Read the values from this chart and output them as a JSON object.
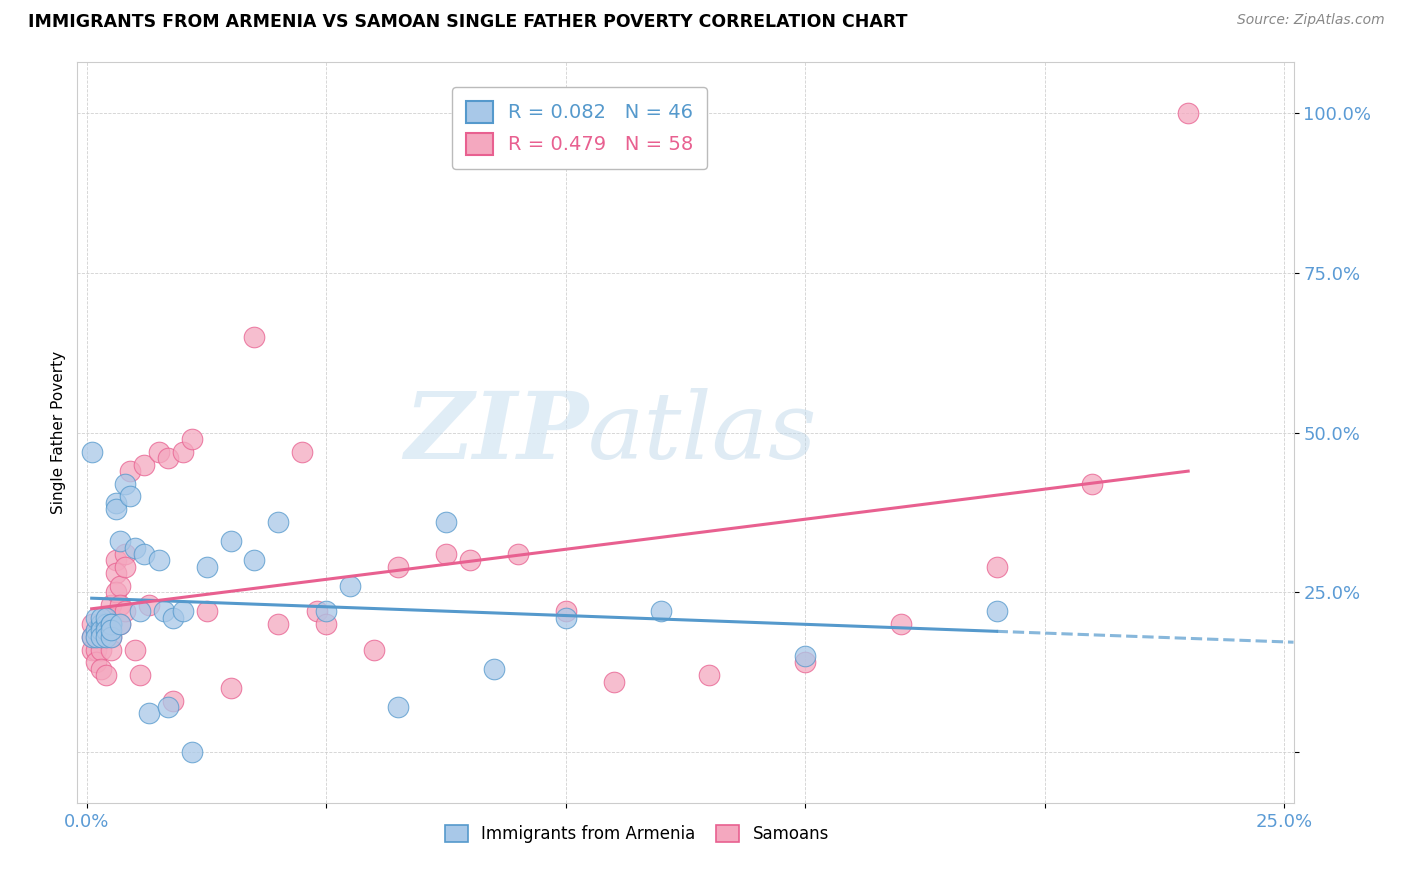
{
  "title": "IMMIGRANTS FROM ARMENIA VS SAMOAN SINGLE FATHER POVERTY CORRELATION CHART",
  "source": "Source: ZipAtlas.com",
  "ylabel": "Single Father Poverty",
  "xlim": [
    -0.002,
    0.252
  ],
  "ylim": [
    -0.08,
    1.08
  ],
  "ytick_positions": [
    0.0,
    0.25,
    0.5,
    0.75,
    1.0
  ],
  "ytick_labels": [
    "",
    "25.0%",
    "50.0%",
    "75.0%",
    "100.0%"
  ],
  "xtick_positions": [
    0.0,
    0.05,
    0.1,
    0.15,
    0.2,
    0.25
  ],
  "xtick_labels": [
    "0.0%",
    "",
    "",
    "",
    "",
    "25.0%"
  ],
  "legend_r1": "R = 0.082   N = 46",
  "legend_r2": "R = 0.479   N = 58",
  "legend_label1": "Immigrants from Armenia",
  "legend_label2": "Samoans",
  "color_armenia": "#a8c8e8",
  "color_samoan": "#f4a8bf",
  "color_armenia_edge": "#5599cc",
  "color_samoan_edge": "#e86090",
  "color_armenia_line": "#5599cc",
  "color_samoan_line": "#e86090",
  "watermark_zip": "ZIP",
  "watermark_atlas": "atlas",
  "armenia_x": [
    0.001,
    0.001,
    0.002,
    0.002,
    0.002,
    0.003,
    0.003,
    0.003,
    0.003,
    0.004,
    0.004,
    0.004,
    0.004,
    0.005,
    0.005,
    0.005,
    0.005,
    0.006,
    0.006,
    0.007,
    0.007,
    0.008,
    0.009,
    0.01,
    0.011,
    0.012,
    0.013,
    0.015,
    0.016,
    0.017,
    0.018,
    0.02,
    0.022,
    0.025,
    0.03,
    0.035,
    0.04,
    0.05,
    0.055,
    0.065,
    0.075,
    0.085,
    0.1,
    0.12,
    0.15,
    0.19
  ],
  "armenia_y": [
    0.47,
    0.18,
    0.19,
    0.18,
    0.21,
    0.2,
    0.21,
    0.19,
    0.18,
    0.2,
    0.21,
    0.19,
    0.18,
    0.2,
    0.2,
    0.18,
    0.19,
    0.39,
    0.38,
    0.2,
    0.33,
    0.42,
    0.4,
    0.32,
    0.22,
    0.31,
    0.06,
    0.3,
    0.22,
    0.07,
    0.21,
    0.22,
    0.0,
    0.29,
    0.33,
    0.3,
    0.36,
    0.22,
    0.26,
    0.07,
    0.36,
    0.13,
    0.21,
    0.22,
    0.15,
    0.22
  ],
  "samoan_x": [
    0.001,
    0.001,
    0.001,
    0.002,
    0.002,
    0.002,
    0.002,
    0.003,
    0.003,
    0.003,
    0.003,
    0.004,
    0.004,
    0.004,
    0.004,
    0.005,
    0.005,
    0.005,
    0.005,
    0.006,
    0.006,
    0.006,
    0.007,
    0.007,
    0.007,
    0.008,
    0.008,
    0.008,
    0.009,
    0.01,
    0.011,
    0.012,
    0.013,
    0.015,
    0.017,
    0.018,
    0.02,
    0.022,
    0.025,
    0.03,
    0.035,
    0.04,
    0.045,
    0.048,
    0.05,
    0.06,
    0.065,
    0.075,
    0.08,
    0.09,
    0.1,
    0.11,
    0.13,
    0.15,
    0.17,
    0.19,
    0.21,
    0.23
  ],
  "samoan_y": [
    0.18,
    0.2,
    0.16,
    0.19,
    0.16,
    0.18,
    0.14,
    0.2,
    0.18,
    0.16,
    0.13,
    0.21,
    0.2,
    0.18,
    0.12,
    0.23,
    0.21,
    0.18,
    0.16,
    0.3,
    0.28,
    0.25,
    0.26,
    0.23,
    0.2,
    0.31,
    0.29,
    0.22,
    0.44,
    0.16,
    0.12,
    0.45,
    0.23,
    0.47,
    0.46,
    0.08,
    0.47,
    0.49,
    0.22,
    0.1,
    0.65,
    0.2,
    0.47,
    0.22,
    0.2,
    0.16,
    0.29,
    0.31,
    0.3,
    0.31,
    0.22,
    0.11,
    0.12,
    0.14,
    0.2,
    0.29,
    0.42,
    1.0
  ]
}
